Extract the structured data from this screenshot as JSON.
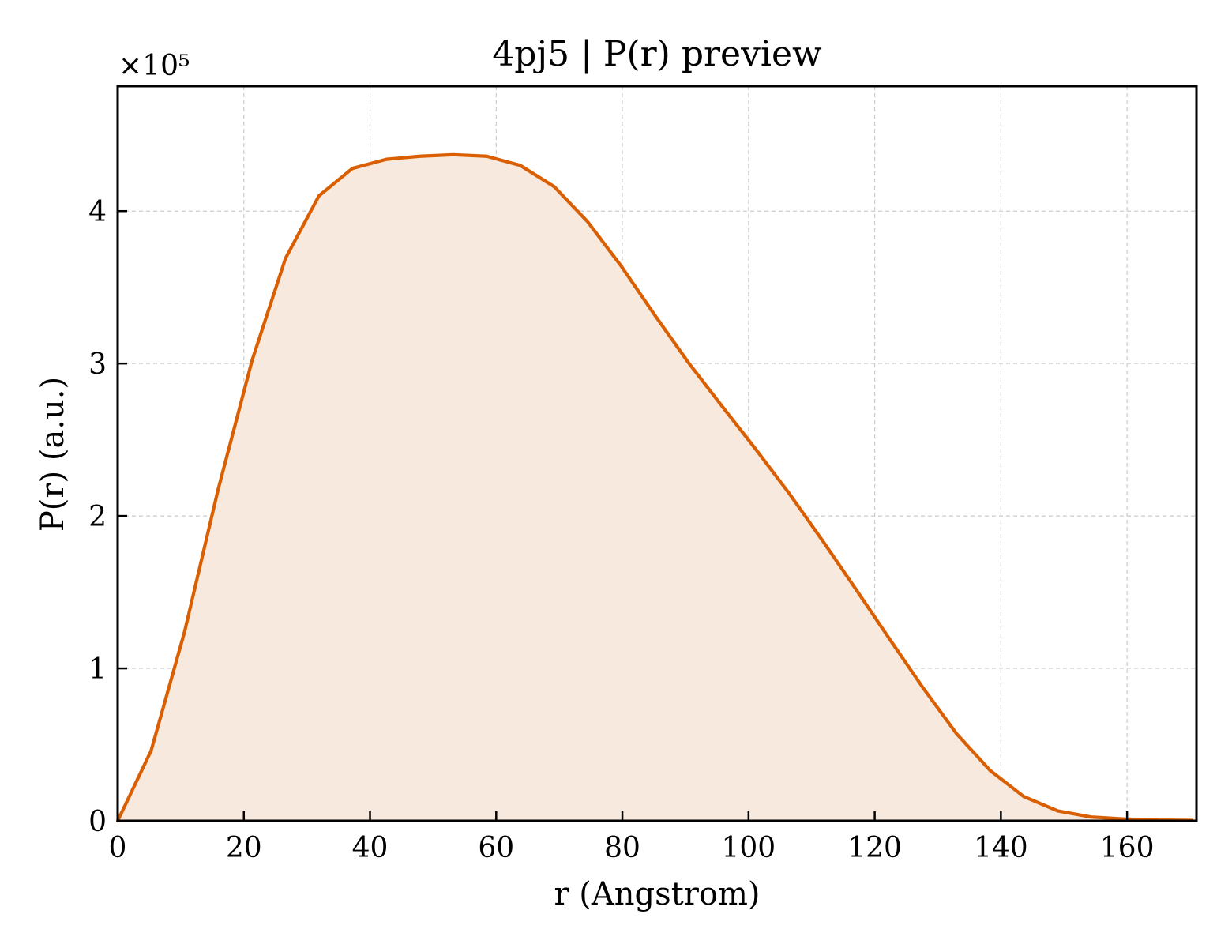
{
  "chart_data": {
    "type": "area",
    "title": "4pj5 | P(r) preview",
    "xlabel": "r (Angstrom)",
    "ylabel": "P(r) (a.u.)",
    "y_scale_label": "×10⁵",
    "xlim": [
      0,
      171
    ],
    "ylim": [
      0,
      4.82
    ],
    "y_multiplier": 100000,
    "xticks": [
      0,
      20,
      40,
      60,
      80,
      100,
      120,
      140,
      160
    ],
    "xtick_labels": [
      "0",
      "20",
      "40",
      "60",
      "80",
      "100",
      "120",
      "140",
      "160"
    ],
    "yticks": [
      0,
      1,
      2,
      3,
      4
    ],
    "ytick_labels": [
      "0",
      "1",
      "2",
      "3",
      "4"
    ],
    "grid": true,
    "legend": false,
    "line_color": "#d95f02",
    "fill_color": "#f8e9de",
    "series": [
      {
        "x": [
          0,
          5.3,
          10.6,
          15.9,
          21.3,
          26.6,
          31.9,
          37.2,
          42.6,
          47.9,
          53.2,
          58.5,
          63.8,
          69.2,
          74.5,
          79.8,
          85.1,
          90.4,
          95.8,
          101.1,
          106.4,
          111.7,
          117.0,
          122.4,
          127.7,
          133.0,
          138.3,
          143.6,
          149.0,
          154.3,
          159.6,
          164.9,
          170.3
        ],
        "y": [
          0.0,
          0.46,
          1.24,
          2.17,
          3.02,
          3.69,
          4.1,
          4.28,
          4.34,
          4.36,
          4.37,
          4.36,
          4.3,
          4.16,
          3.93,
          3.64,
          3.32,
          3.01,
          2.72,
          2.44,
          2.15,
          1.84,
          1.52,
          1.19,
          0.87,
          0.57,
          0.33,
          0.16,
          0.065,
          0.025,
          0.012,
          0.005,
          0.003
        ]
      }
    ]
  }
}
